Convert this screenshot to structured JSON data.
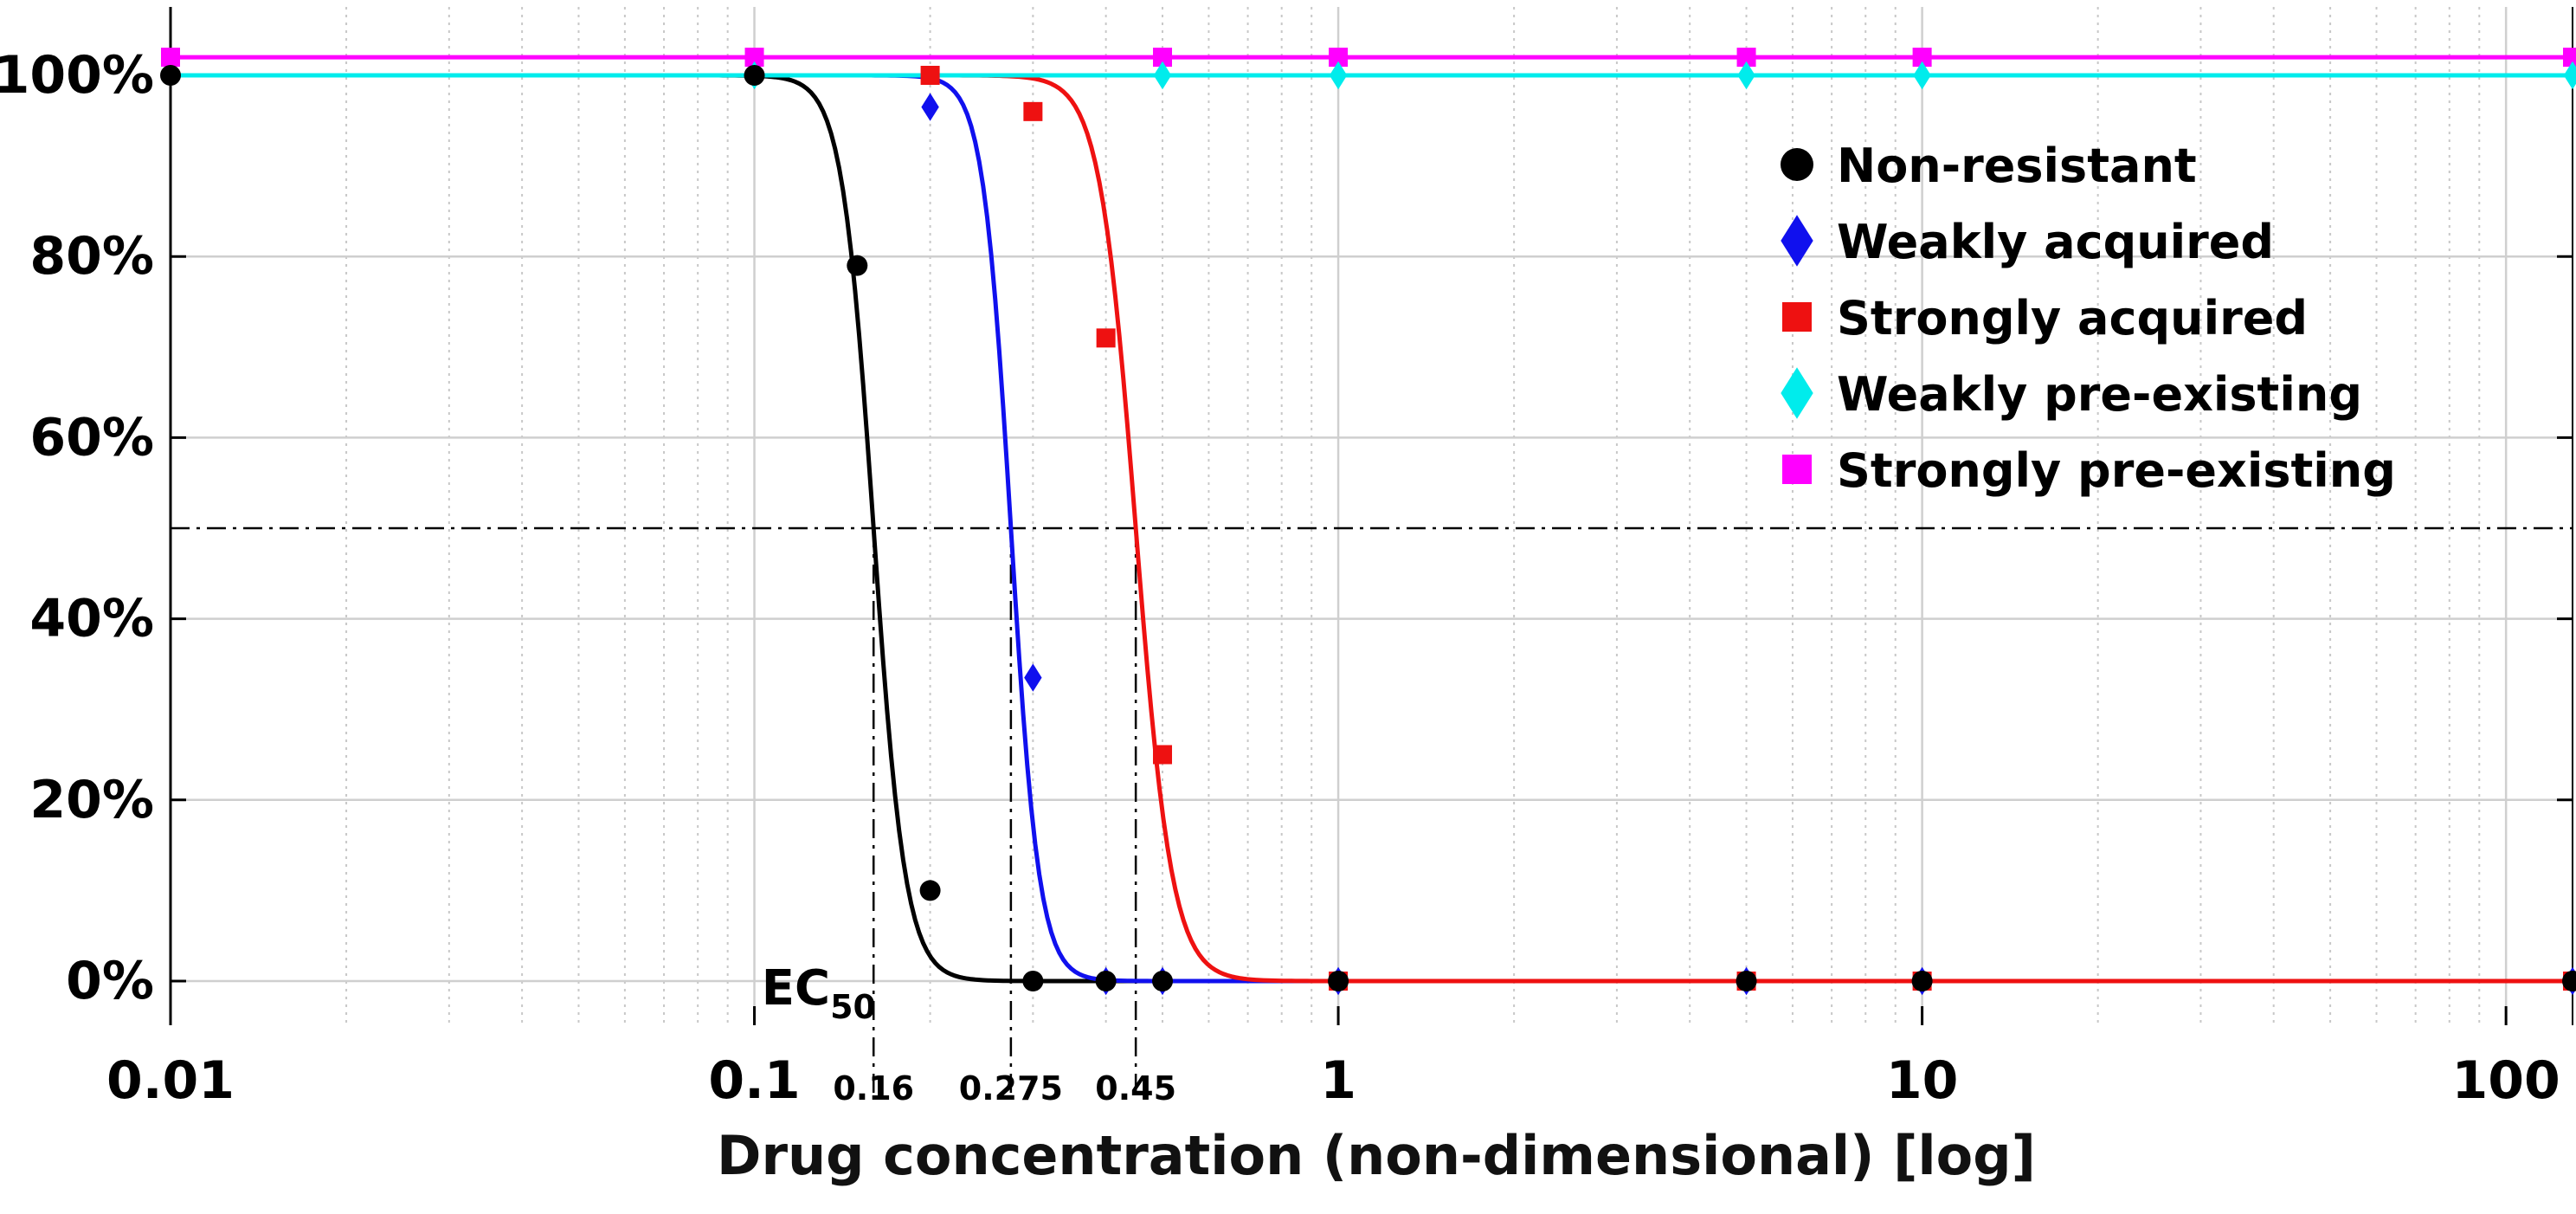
{
  "chart_data": {
    "type": "line",
    "x_scale": "log",
    "xlim": [
      0.01,
      130
    ],
    "ylim": [
      -5,
      108
    ],
    "xlabel": "Drug concentration (non-dimensional) [log]",
    "ylabel": "",
    "grid": true,
    "legend_position": "upper-right",
    "x_ticks": [
      {
        "value": 0.01,
        "label": "0.01"
      },
      {
        "value": 0.1,
        "label": "0.1"
      },
      {
        "value": 1,
        "label": "1"
      },
      {
        "value": 10,
        "label": "10"
      },
      {
        "value": 100,
        "label": "100"
      }
    ],
    "y_ticks": [
      {
        "value": 0,
        "label": "0%"
      },
      {
        "value": 20,
        "label": "20%"
      },
      {
        "value": 40,
        "label": "40%"
      },
      {
        "value": 60,
        "label": "60%"
      },
      {
        "value": 80,
        "label": "80%"
      },
      {
        "value": 100,
        "label": "100%"
      }
    ],
    "ec50": {
      "label_main": "EC",
      "label_sub": "50",
      "y_level": 50,
      "markers": [
        {
          "value": 0.16,
          "label": "0.16"
        },
        {
          "value": 0.275,
          "label": "0.275"
        },
        {
          "value": 0.45,
          "label": "0.45"
        }
      ]
    },
    "series": [
      {
        "name": "Non-resistant",
        "color": "#000000",
        "marker": "circle",
        "fit": {
          "top": 100,
          "ec50": 0.16,
          "hill": 16
        },
        "points": [
          [
            0.01,
            100
          ],
          [
            0.1,
            100
          ],
          [
            0.15,
            79
          ],
          [
            0.2,
            10
          ],
          [
            0.3,
            0
          ],
          [
            0.4,
            0
          ],
          [
            0.5,
            0
          ],
          [
            1,
            0
          ],
          [
            5,
            0
          ],
          [
            10,
            0
          ],
          [
            130,
            0
          ]
        ]
      },
      {
        "name": "Weakly acquired",
        "color": "#1010ee",
        "marker": "diamond",
        "fit": {
          "top": 100,
          "ec50": 0.275,
          "hill": 18
        },
        "points": [
          [
            0.2,
            96.5
          ],
          [
            0.3,
            33.5
          ],
          [
            0.4,
            0
          ],
          [
            0.5,
            0
          ],
          [
            1,
            0
          ],
          [
            5,
            0
          ],
          [
            10,
            0
          ],
          [
            130,
            0
          ]
        ]
      },
      {
        "name": "Strongly acquired",
        "color": "#ee1111",
        "marker": "square",
        "fit": {
          "top": 100,
          "ec50": 0.45,
          "hill": 14
        },
        "points": [
          [
            0.2,
            100
          ],
          [
            0.3,
            96
          ],
          [
            0.4,
            71
          ],
          [
            0.5,
            25
          ],
          [
            1,
            0
          ],
          [
            5,
            0
          ],
          [
            10,
            0
          ],
          [
            130,
            0
          ]
        ]
      },
      {
        "name": "Weakly pre-existing",
        "color": "#00ecec",
        "marker": "diamond",
        "fit": {
          "constant": 100
        },
        "points": [
          [
            0.1,
            100
          ],
          [
            0.5,
            100
          ],
          [
            1,
            100
          ],
          [
            5,
            100
          ],
          [
            10,
            100
          ],
          [
            130,
            100
          ]
        ]
      },
      {
        "name": "Strongly pre-existing",
        "color": "#ff00ff",
        "marker": "square",
        "fit": {
          "constant": 102
        },
        "points": [
          [
            0.01,
            102
          ],
          [
            0.1,
            102
          ],
          [
            0.5,
            102
          ],
          [
            1,
            102
          ],
          [
            5,
            102
          ],
          [
            10,
            102
          ],
          [
            130,
            102
          ]
        ]
      }
    ]
  }
}
